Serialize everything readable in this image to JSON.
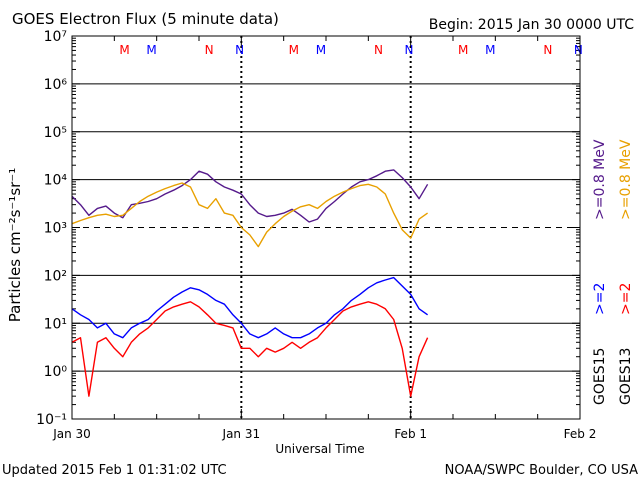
{
  "header": {
    "title": "GOES Electron Flux (5 minute data)",
    "begin": "Begin: 2015 Jan 30 0000 UTC"
  },
  "footer": {
    "updated": "Updated 2015 Feb  1 01:31:02 UTC",
    "credit": "NOAA/SWPC Boulder, CO USA"
  },
  "chart_data": {
    "type": "line",
    "title": "GOES Electron Flux (5 minute data)",
    "xlabel": "Universal Time",
    "ylabel": "Particles cm⁻²s⁻¹sr⁻¹",
    "y_scale": "log",
    "ylim": [
      0.1,
      10000000
    ],
    "xlim": [
      0,
      3
    ],
    "y_tick_labels": [
      "10⁻¹",
      "10⁰",
      "10¹",
      "10²",
      "10³",
      "10⁴",
      "10⁵",
      "10⁶",
      "10⁷"
    ],
    "x_ticks": [
      {
        "value": 0,
        "label": "Jan 30"
      },
      {
        "value": 1,
        "label": "Jan 31"
      },
      {
        "value": 2,
        "label": "Feb 1"
      },
      {
        "value": 3,
        "label": "Feb 2"
      }
    ],
    "threshold": {
      "value": 1000,
      "style": "dashed"
    },
    "day_separators": [
      1,
      2
    ],
    "markers": [
      {
        "label": "M",
        "x": 0.31,
        "color": "#ff0000"
      },
      {
        "label": "M",
        "x": 0.47,
        "color": "#0000ff"
      },
      {
        "label": "N",
        "x": 0.81,
        "color": "#ff0000"
      },
      {
        "label": "N",
        "x": 0.99,
        "color": "#0000ff"
      },
      {
        "label": "M",
        "x": 1.31,
        "color": "#ff0000"
      },
      {
        "label": "M",
        "x": 1.47,
        "color": "#0000ff"
      },
      {
        "label": "N",
        "x": 1.81,
        "color": "#ff0000"
      },
      {
        "label": "N",
        "x": 1.99,
        "color": "#0000ff"
      },
      {
        "label": "M",
        "x": 2.31,
        "color": "#ff0000"
      },
      {
        "label": "M",
        "x": 2.47,
        "color": "#0000ff"
      },
      {
        "label": "N",
        "x": 2.81,
        "color": "#ff0000"
      },
      {
        "label": "N",
        "x": 2.99,
        "color": "#0000ff"
      }
    ],
    "legend": [
      {
        "text": "GOES15",
        "color": "#000000"
      },
      {
        "text": "GOES13",
        "color": "#000000"
      },
      {
        "text": ">=2",
        "color": "#0000ff"
      },
      {
        "text": ">=2",
        "color": "#ff0000"
      },
      {
        "text": ">=0.8 MeV",
        "color": "#551a8b"
      },
      {
        "text": ">=0.8 MeV",
        "color": "#e8a000"
      }
    ],
    "series": [
      {
        "name": "GOES15 >=0.8 MeV",
        "color": "#551a8b",
        "x": [
          0.0,
          0.05,
          0.1,
          0.15,
          0.2,
          0.25,
          0.3,
          0.35,
          0.4,
          0.45,
          0.5,
          0.55,
          0.6,
          0.65,
          0.7,
          0.75,
          0.8,
          0.85,
          0.9,
          0.95,
          1.0,
          1.05,
          1.1,
          1.15,
          1.2,
          1.25,
          1.3,
          1.35,
          1.4,
          1.45,
          1.5,
          1.55,
          1.6,
          1.65,
          1.7,
          1.75,
          1.8,
          1.85,
          1.9,
          1.95,
          2.0,
          2.05,
          2.1
        ],
        "values": [
          4500,
          3000,
          1800,
          2500,
          2800,
          2000,
          1600,
          3000,
          3200,
          3500,
          4000,
          5000,
          6000,
          7500,
          10000,
          15000,
          13000,
          9000,
          7000,
          6000,
          5000,
          3000,
          2000,
          1700,
          1800,
          2000,
          2400,
          1800,
          1300,
          1500,
          2500,
          3500,
          5000,
          7000,
          9000,
          10000,
          12000,
          15000,
          16000,
          11000,
          7000,
          4000,
          8000
        ]
      },
      {
        "name": "GOES13 >=0.8 MeV",
        "color": "#e8a000",
        "x": [
          0.0,
          0.05,
          0.1,
          0.15,
          0.2,
          0.25,
          0.3,
          0.35,
          0.4,
          0.45,
          0.5,
          0.55,
          0.6,
          0.65,
          0.7,
          0.75,
          0.8,
          0.85,
          0.9,
          0.95,
          1.0,
          1.05,
          1.1,
          1.15,
          1.2,
          1.25,
          1.3,
          1.35,
          1.4,
          1.45,
          1.5,
          1.55,
          1.6,
          1.65,
          1.7,
          1.75,
          1.8,
          1.85,
          1.9,
          1.95,
          2.0,
          2.05,
          2.1
        ],
        "values": [
          1200,
          1400,
          1600,
          1800,
          1900,
          1700,
          1800,
          2500,
          3500,
          4500,
          5500,
          6500,
          7500,
          8500,
          7000,
          3000,
          2500,
          4000,
          2000,
          1800,
          1000,
          700,
          400,
          800,
          1200,
          1700,
          2200,
          2700,
          3000,
          2500,
          3500,
          4500,
          5500,
          6500,
          7500,
          8000,
          7000,
          5000,
          2000,
          900,
          600,
          1500,
          2000
        ]
      },
      {
        "name": "GOES15 >=2 MeV",
        "color": "#0000ff",
        "x": [
          0.0,
          0.05,
          0.1,
          0.15,
          0.2,
          0.25,
          0.3,
          0.35,
          0.4,
          0.45,
          0.5,
          0.55,
          0.6,
          0.65,
          0.7,
          0.75,
          0.8,
          0.85,
          0.9,
          0.95,
          1.0,
          1.05,
          1.1,
          1.15,
          1.2,
          1.25,
          1.3,
          1.35,
          1.4,
          1.45,
          1.5,
          1.55,
          1.6,
          1.65,
          1.7,
          1.75,
          1.8,
          1.85,
          1.9,
          1.95,
          2.0,
          2.05,
          2.1
        ],
        "values": [
          20,
          15,
          12,
          8,
          10,
          6,
          5,
          8,
          10,
          12,
          18,
          25,
          35,
          45,
          55,
          50,
          40,
          30,
          25,
          15,
          10,
          6,
          5,
          6,
          8,
          6,
          5,
          5,
          6,
          8,
          10,
          15,
          20,
          30,
          40,
          55,
          70,
          80,
          90,
          60,
          40,
          20,
          15
        ]
      },
      {
        "name": "GOES13 >=2 MeV",
        "color": "#ff0000",
        "x": [
          0.0,
          0.05,
          0.1,
          0.15,
          0.2,
          0.25,
          0.3,
          0.35,
          0.4,
          0.45,
          0.5,
          0.55,
          0.6,
          0.65,
          0.7,
          0.75,
          0.8,
          0.85,
          0.9,
          0.95,
          1.0,
          1.05,
          1.1,
          1.15,
          1.2,
          1.25,
          1.3,
          1.35,
          1.4,
          1.45,
          1.5,
          1.55,
          1.6,
          1.65,
          1.7,
          1.75,
          1.8,
          1.85,
          1.9,
          1.95,
          2.0,
          2.05,
          2.1
        ],
        "values": [
          4,
          5,
          0.3,
          4,
          5,
          3,
          2,
          4,
          6,
          8,
          12,
          18,
          22,
          25,
          28,
          22,
          15,
          10,
          9,
          8,
          3,
          3,
          2,
          3,
          2.5,
          3,
          4,
          3,
          4,
          5,
          8,
          12,
          18,
          22,
          25,
          28,
          25,
          20,
          12,
          3,
          0.3,
          2,
          5
        ]
      }
    ]
  }
}
